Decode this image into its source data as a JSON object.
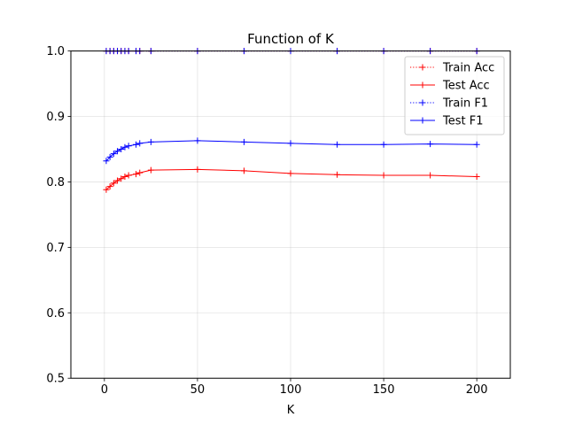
{
  "chart_data": {
    "type": "line",
    "title": "Function of K",
    "xlabel": "K",
    "ylabel": "",
    "xlim": [
      -18,
      218
    ],
    "ylim": [
      0.5,
      1.0
    ],
    "xticks": [
      0,
      50,
      100,
      150,
      200
    ],
    "yticks": [
      0.5,
      0.6,
      0.7,
      0.8,
      0.9,
      1.0
    ],
    "ytick_labels": [
      "0.5",
      "0.6",
      "0.7",
      "0.8",
      "0.9",
      "1.0"
    ],
    "grid": true,
    "legend_position": "top-right",
    "x": [
      1,
      3,
      5,
      7,
      9,
      11,
      13,
      17,
      19,
      25,
      50,
      75,
      100,
      125,
      150,
      175,
      200
    ],
    "series": [
      {
        "name": "Train Acc",
        "color": "#ff0000",
        "linestyle": "dotted",
        "values": [
          1.0,
          1.0,
          1.0,
          1.0,
          1.0,
          1.0,
          1.0,
          1.0,
          1.0,
          1.0,
          1.0,
          1.0,
          1.0,
          1.0,
          1.0,
          1.0,
          1.0
        ]
      },
      {
        "name": "Test Acc",
        "color": "#ff0000",
        "linestyle": "solid",
        "values": [
          0.788,
          0.793,
          0.798,
          0.802,
          0.805,
          0.808,
          0.81,
          0.812,
          0.814,
          0.818,
          0.819,
          0.817,
          0.813,
          0.811,
          0.81,
          0.81,
          0.808
        ]
      },
      {
        "name": "Train F1",
        "color": "#0000ff",
        "linestyle": "dotted",
        "values": [
          1.0,
          1.0,
          1.0,
          1.0,
          1.0,
          1.0,
          1.0,
          1.0,
          1.0,
          1.0,
          1.0,
          1.0,
          1.0,
          1.0,
          1.0,
          1.0,
          1.0
        ]
      },
      {
        "name": "Test F1",
        "color": "#0000ff",
        "linestyle": "solid",
        "values": [
          0.832,
          0.838,
          0.843,
          0.847,
          0.85,
          0.853,
          0.855,
          0.857,
          0.859,
          0.861,
          0.863,
          0.861,
          0.859,
          0.857,
          0.857,
          0.858,
          0.857
        ]
      }
    ]
  }
}
